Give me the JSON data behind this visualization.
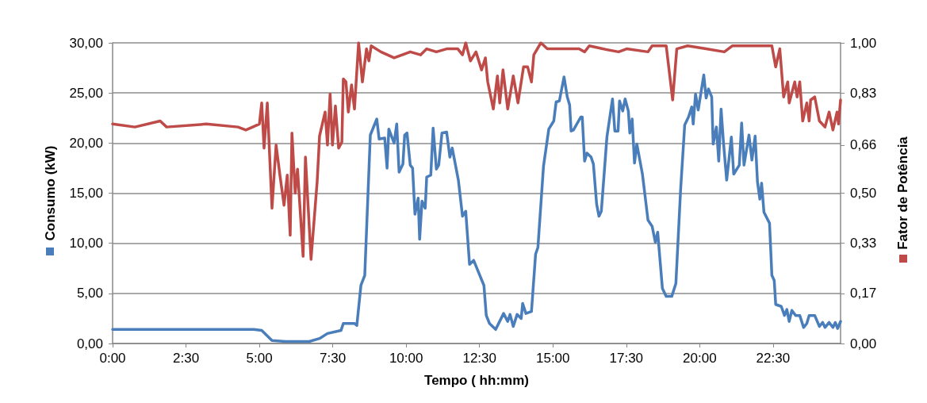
{
  "chart_data": {
    "type": "line",
    "xlabel": "Tempo ( hh:mm)",
    "ylabel": "Consumo (kW)",
    "y2label": "Fator de Potência",
    "xlim": [
      0,
      24.8
    ],
    "xticks": [
      {
        "value": 0,
        "label": "0:00"
      },
      {
        "value": 2.5,
        "label": "2:30"
      },
      {
        "value": 5,
        "label": "5:00"
      },
      {
        "value": 7.5,
        "label": "7:30"
      },
      {
        "value": 10,
        "label": "10:00"
      },
      {
        "value": 12.5,
        "label": "12:30"
      },
      {
        "value": 15,
        "label": "15:00"
      },
      {
        "value": 17.5,
        "label": "17:30"
      },
      {
        "value": 20,
        "label": "20:00"
      },
      {
        "value": 22.5,
        "label": "22:30"
      }
    ],
    "ylim": [
      0,
      30
    ],
    "yticks": [
      {
        "value": 0,
        "label": "0,00"
      },
      {
        "value": 5,
        "label": "5,00"
      },
      {
        "value": 10,
        "label": "10,00"
      },
      {
        "value": 15,
        "label": "15,00"
      },
      {
        "value": 20,
        "label": "20,00"
      },
      {
        "value": 25,
        "label": "25,00"
      },
      {
        "value": 30,
        "label": "30,00"
      }
    ],
    "y2lim": [
      0,
      1
    ],
    "y2ticks": [
      {
        "value": 0,
        "label": "0,00"
      },
      {
        "value": 0.1667,
        "label": "0,17"
      },
      {
        "value": 0.3333,
        "label": "0,33"
      },
      {
        "value": 0.5,
        "label": "0,50"
      },
      {
        "value": 0.66,
        "label": "0,66"
      },
      {
        "value": 0.8333,
        "label": "0,83"
      },
      {
        "value": 1,
        "label": "1,00"
      }
    ],
    "grid": "y",
    "marker": "none",
    "line_style": "solid",
    "series": [
      {
        "color": "#4a7ebb",
        "x": [
          0,
          1.57,
          3.19,
          4.81,
          5.08,
          5.43,
          5.89,
          6.7,
          7.05,
          7.32,
          7.78,
          7.86,
          8.24,
          8.32,
          8.46,
          8.59,
          8.78,
          9.0,
          9.08,
          9.27,
          9.35,
          9.41,
          9.59,
          9.68,
          9.76,
          9.89,
          9.95,
          10.03,
          10.14,
          10.22,
          10.3,
          10.41,
          10.46,
          10.54,
          10.65,
          10.7,
          10.84,
          10.92,
          11.03,
          11.11,
          11.22,
          11.38,
          11.49,
          11.57,
          11.78,
          11.92,
          12.03,
          12.16,
          12.3,
          12.51,
          12.65,
          12.73,
          12.84,
          13.05,
          13.32,
          13.46,
          13.54,
          13.65,
          13.78,
          13.92,
          13.97,
          14.08,
          14.27,
          14.41,
          14.49,
          14.68,
          14.86,
          15.03,
          15.11,
          15.22,
          15.38,
          15.49,
          15.57,
          15.62,
          15.7,
          15.95,
          16.0,
          16.08,
          16.16,
          16.3,
          16.38,
          16.49,
          16.57,
          16.65,
          16.84,
          17.03,
          17.11,
          17.22,
          17.27,
          17.38,
          17.46,
          17.57,
          17.62,
          17.7,
          17.78,
          17.86,
          18.05,
          18.24,
          18.38,
          18.49,
          18.57,
          18.73,
          18.86,
          19.05,
          19.19,
          19.35,
          19.49,
          19.62,
          19.73,
          19.78,
          19.86,
          19.95,
          20.14,
          20.22,
          20.3,
          20.41,
          20.46,
          20.57,
          20.65,
          20.73,
          20.81,
          20.92,
          21.08,
          21.16,
          21.35,
          21.43,
          21.51,
          21.68,
          21.78,
          21.89,
          21.97,
          22.05,
          22.11,
          22.19,
          22.38,
          22.46,
          22.54,
          22.59,
          22.78,
          22.89,
          22.97,
          23.05,
          23.14,
          23.27,
          23.41,
          23.54,
          23.65,
          23.73,
          23.92,
          24.08,
          24.19,
          24.27,
          24.41,
          24.54,
          24.62,
          24.7,
          24.8
        ],
        "values": [
          1.4,
          1.4,
          1.4,
          1.4,
          1.3,
          0.3,
          0.2,
          0.2,
          0.5,
          1.0,
          1.3,
          2.0,
          2.0,
          1.8,
          5.8,
          6.8,
          20.8,
          22.4,
          20.4,
          20.5,
          17.5,
          21.4,
          20.0,
          21.9,
          17.1,
          17.9,
          20.8,
          21.0,
          17.8,
          17.5,
          12.9,
          14.5,
          10.4,
          14.2,
          13.5,
          16.6,
          16.8,
          21.5,
          17.4,
          17.8,
          21.0,
          21.1,
          18.6,
          19.5,
          16.3,
          12.7,
          13.2,
          7.9,
          8.3,
          6.8,
          5.8,
          2.8,
          2.0,
          1.4,
          3.0,
          2.2,
          2.9,
          1.7,
          2.9,
          2.5,
          4.0,
          3.0,
          3.2,
          8.9,
          9.6,
          17.7,
          21.4,
          22.2,
          24.1,
          24.2,
          26.6,
          24.6,
          23.8,
          21.2,
          21.3,
          22.6,
          22.6,
          18.2,
          19.0,
          18.6,
          17.9,
          13.9,
          12.7,
          13.2,
          20.6,
          24.4,
          21.2,
          21.2,
          24.2,
          23.2,
          24.4,
          23.2,
          21.0,
          22.4,
          18.0,
          19.9,
          16.9,
          12.3,
          11.7,
          10.1,
          11.1,
          5.5,
          4.7,
          4.7,
          6.0,
          15.3,
          21.8,
          22.6,
          23.6,
          21.9,
          24.9,
          23.3,
          26.8,
          24.5,
          25.4,
          24.6,
          19.9,
          21.6,
          18.2,
          23.4,
          20.1,
          16.3,
          20.6,
          16.9,
          17.8,
          22.0,
          17.8,
          20.8,
          18.3,
          20.7,
          16.1,
          14.4,
          16.0,
          13.1,
          12.0,
          6.8,
          6.3,
          3.9,
          3.7,
          2.8,
          3.4,
          2.2,
          3.3,
          2.8,
          2.8,
          1.6,
          2.0,
          2.8,
          2.8,
          1.7,
          2.1,
          1.6,
          2.1,
          1.6,
          2.1,
          1.5,
          2.2
        ]
      },
      {
        "color": "#be4b48",
        "axis": "y2",
        "x": [
          0,
          0.76,
          1.62,
          1.84,
          3.19,
          4.27,
          4.54,
          5.0,
          5.08,
          5.16,
          5.27,
          5.43,
          5.57,
          5.7,
          5.84,
          5.95,
          6.05,
          6.11,
          6.22,
          6.3,
          6.49,
          6.57,
          6.76,
          6.97,
          7.05,
          7.24,
          7.32,
          7.41,
          7.49,
          7.59,
          7.7,
          7.81,
          7.86,
          7.95,
          8.03,
          8.14,
          8.24,
          8.38,
          8.51,
          8.65,
          8.73,
          8.81,
          9.14,
          9.59,
          10.14,
          10.49,
          10.7,
          11.03,
          11.38,
          11.76,
          11.92,
          12.03,
          12.19,
          12.38,
          12.57,
          12.7,
          12.78,
          12.97,
          13.11,
          13.19,
          13.3,
          13.46,
          13.65,
          13.81,
          14.0,
          14.14,
          14.27,
          14.35,
          14.59,
          14.81,
          15.43,
          15.89,
          16.08,
          16.24,
          16.7,
          17.24,
          17.51,
          18.24,
          18.38,
          18.86,
          19.08,
          19.22,
          19.59,
          20.22,
          20.84,
          21.11,
          21.57,
          22.46,
          22.59,
          22.73,
          22.86,
          23.0,
          23.05,
          23.24,
          23.32,
          23.41,
          23.51,
          23.65,
          23.73,
          23.78,
          23.92,
          24.08,
          24.27,
          24.41,
          24.54,
          24.68,
          24.73,
          24.8
        ],
        "values": [
          0.73,
          0.72,
          0.74,
          0.72,
          0.73,
          0.72,
          0.71,
          0.73,
          0.8,
          0.65,
          0.8,
          0.45,
          0.66,
          0.56,
          0.46,
          0.56,
          0.36,
          0.7,
          0.5,
          0.58,
          0.29,
          0.62,
          0.28,
          0.54,
          0.69,
          0.77,
          0.66,
          0.83,
          0.66,
          0.79,
          0.65,
          0.67,
          0.88,
          0.87,
          0.77,
          0.86,
          0.78,
          1.0,
          0.87,
          0.98,
          0.94,
          0.99,
          0.97,
          0.95,
          0.97,
          0.96,
          0.98,
          0.97,
          0.98,
          0.98,
          0.96,
          1.0,
          0.94,
          0.97,
          0.91,
          0.95,
          0.87,
          0.78,
          0.89,
          0.8,
          0.91,
          0.78,
          0.89,
          0.8,
          0.92,
          0.92,
          0.87,
          0.96,
          1.0,
          0.98,
          0.98,
          0.98,
          0.97,
          0.99,
          0.98,
          0.97,
          0.98,
          0.97,
          0.99,
          0.99,
          0.81,
          0.98,
          0.99,
          0.98,
          0.97,
          0.99,
          0.99,
          0.99,
          0.92,
          0.98,
          0.82,
          0.87,
          0.8,
          0.87,
          0.82,
          0.87,
          0.74,
          0.8,
          0.74,
          0.81,
          0.82,
          0.74,
          0.72,
          0.77,
          0.71,
          0.77,
          0.73,
          0.81
        ]
      }
    ]
  }
}
